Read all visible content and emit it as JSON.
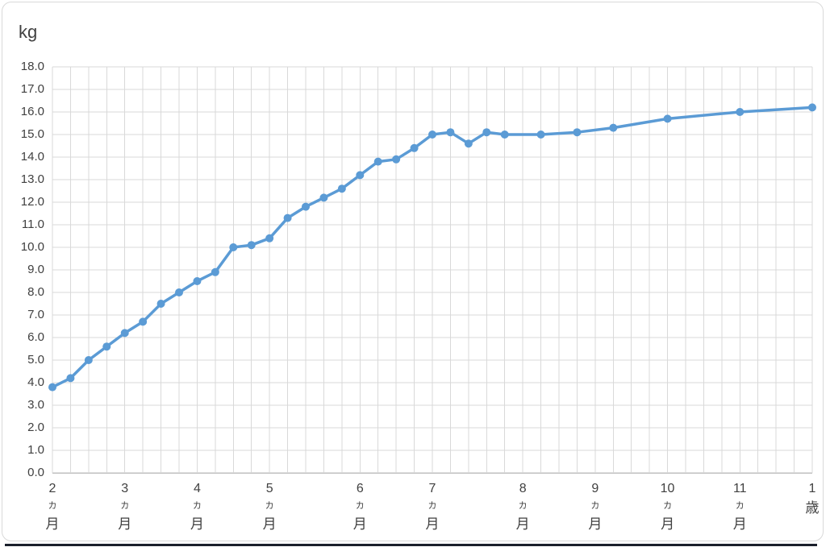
{
  "chart": {
    "unit_label": "kg",
    "colors": {
      "series": "#5B9BD5",
      "gridline": "#D9D9D9",
      "axis_line": "#BFBFBF",
      "tick_label": "#404040",
      "frame_border": "#D9D9D9",
      "background": "#FFFFFF",
      "bottom_edge": "#1A1F2B"
    }
  },
  "chart_data": {
    "type": "line",
    "title": "",
    "ylabel": "kg",
    "xlabel": "",
    "ylim": [
      0,
      18
    ],
    "ytick_step": 1,
    "ytick_decimals": 1,
    "grid": true,
    "legend": false,
    "x_category_count": 43,
    "x_axis_ticks": [
      {
        "cat": 0,
        "label": "2カ月",
        "lines": [
          "2",
          "カ",
          "月"
        ]
      },
      {
        "cat": 4,
        "label": "3カ月",
        "lines": [
          "3",
          "カ",
          "月"
        ]
      },
      {
        "cat": 8,
        "label": "4カ月",
        "lines": [
          "4",
          "カ",
          "月"
        ]
      },
      {
        "cat": 12,
        "label": "5カ月",
        "lines": [
          "5",
          "カ",
          "月"
        ]
      },
      {
        "cat": 17,
        "label": "6カ月",
        "lines": [
          "6",
          "カ",
          "月"
        ]
      },
      {
        "cat": 21,
        "label": "7カ月",
        "lines": [
          "7",
          "カ",
          "月"
        ]
      },
      {
        "cat": 26,
        "label": "8カ月",
        "lines": [
          "8",
          "カ",
          "月"
        ]
      },
      {
        "cat": 30,
        "label": "9カ月",
        "lines": [
          "9",
          "カ",
          "月"
        ]
      },
      {
        "cat": 34,
        "label": "10カ月",
        "lines": [
          "10",
          "カ",
          "月"
        ]
      },
      {
        "cat": 38,
        "label": "11カ月",
        "lines": [
          "11",
          "カ",
          "月"
        ]
      },
      {
        "cat": 42,
        "label": "1歳",
        "lines": [
          "1",
          "歳"
        ]
      }
    ],
    "series": [
      {
        "points": [
          [
            0,
            3.8
          ],
          [
            1,
            4.2
          ],
          [
            2,
            5.0
          ],
          [
            3,
            5.6
          ],
          [
            4,
            6.2
          ],
          [
            5,
            6.7
          ],
          [
            6,
            7.5
          ],
          [
            7,
            8.0
          ],
          [
            8,
            8.5
          ],
          [
            9,
            8.9
          ],
          [
            10,
            10.0
          ],
          [
            11,
            10.1
          ],
          [
            12,
            10.4
          ],
          [
            13,
            11.3
          ],
          [
            14,
            11.8
          ],
          [
            15,
            12.2
          ],
          [
            16,
            12.6
          ],
          [
            17,
            13.2
          ],
          [
            18,
            13.8
          ],
          [
            19,
            13.9
          ],
          [
            20,
            14.4
          ],
          [
            21,
            15.0
          ],
          [
            22,
            15.1
          ],
          [
            23,
            14.6
          ],
          [
            24,
            15.1
          ],
          [
            25,
            15.0
          ],
          [
            27,
            15.0
          ],
          [
            29,
            15.1
          ],
          [
            31,
            15.3
          ],
          [
            34,
            15.7
          ],
          [
            38,
            16.0
          ],
          [
            42,
            16.2
          ]
        ]
      }
    ]
  }
}
